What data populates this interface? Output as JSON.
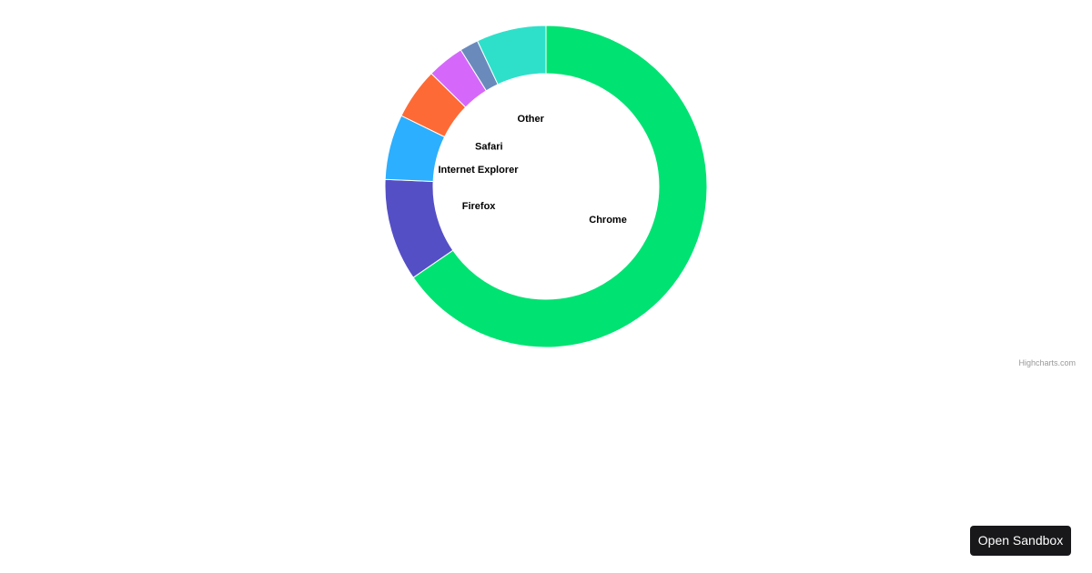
{
  "chart_data": {
    "type": "pie",
    "variant": "donut",
    "title": "",
    "series": [
      {
        "values": [
          {
            "name": "Chrome",
            "y": 70,
            "color": "#00e272"
          },
          {
            "name": "Firefox",
            "y": 11,
            "color": "#544fc5"
          },
          {
            "name": "Internet Explorer",
            "y": 7,
            "color": "#2caffe"
          },
          {
            "name": "Safari",
            "y": 5.5,
            "color": "#fe6a35"
          },
          {
            "name": "",
            "y": 4,
            "color": "#d568fb"
          },
          {
            "name": "",
            "y": 2,
            "color": "#6b8abc"
          },
          {
            "name": "Other",
            "y": 7.5,
            "color": "#2ee0ca"
          }
        ]
      }
    ]
  },
  "credits": "Highcharts.com",
  "sandbox_button": "Open Sandbox"
}
